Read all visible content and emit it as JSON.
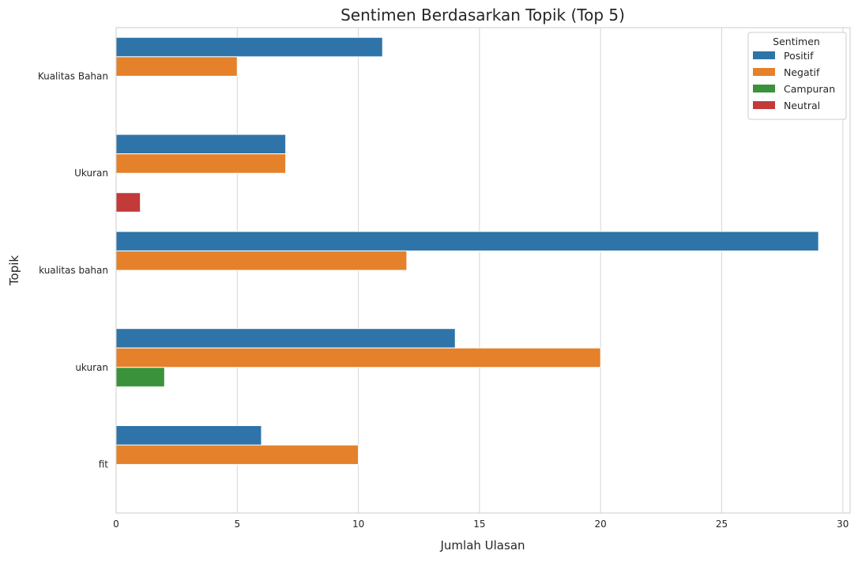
{
  "chart_data": {
    "type": "bar",
    "orientation": "horizontal",
    "title": "Sentimen Berdasarkan Topik (Top 5)",
    "xlabel": "Jumlah Ulasan",
    "ylabel": "Topik",
    "xlim": [
      0,
      30.3
    ],
    "x_ticks": [
      "0",
      "5",
      "10",
      "15",
      "20",
      "25",
      "30"
    ],
    "grid": "vertical",
    "legend_placement": "top-right",
    "legend_title": "Sentimen",
    "categories": [
      "Kualitas Bahan",
      "Ukuran",
      "kualitas bahan",
      "ukuran",
      "fit"
    ],
    "series": [
      {
        "name": "Positif",
        "color": "#2e74a8",
        "values": [
          11,
          7,
          29,
          14,
          6
        ]
      },
      {
        "name": "Negatif",
        "color": "#e4812a",
        "values": [
          5,
          7,
          12,
          20,
          10
        ]
      },
      {
        "name": "Campuran",
        "color": "#3a933a",
        "values": [
          0,
          0,
          0,
          2,
          0
        ]
      },
      {
        "name": "Neutral",
        "color": "#c23a3a",
        "values": [
          0,
          1,
          0,
          0,
          0
        ]
      }
    ]
  }
}
